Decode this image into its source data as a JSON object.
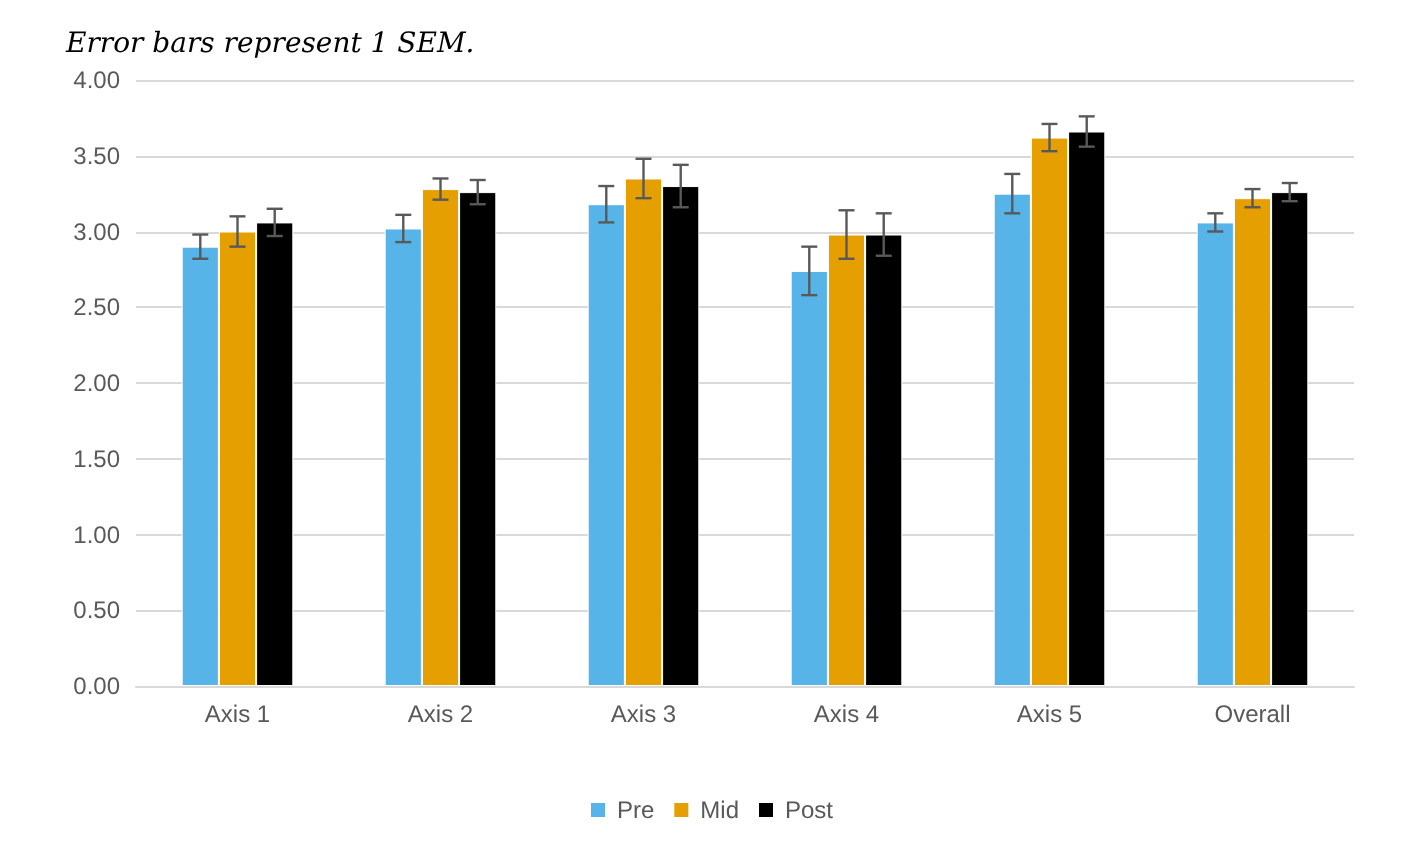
{
  "chart_data": {
    "type": "bar",
    "title": "Error bars represent 1 SEM.",
    "categories": [
      "Axis 1",
      "Axis 2",
      "Axis 3",
      "Axis 4",
      "Axis 5",
      "Overall"
    ],
    "series": [
      {
        "name": "Pre",
        "color": "#56b4e9",
        "values": [
          2.9,
          3.02,
          3.18,
          2.74,
          3.25,
          3.06
        ],
        "errors": [
          0.08,
          0.09,
          0.12,
          0.16,
          0.13,
          0.06
        ]
      },
      {
        "name": "Mid",
        "color": "#e69f00",
        "values": [
          3.0,
          3.28,
          3.35,
          2.98,
          3.62,
          3.22
        ],
        "errors": [
          0.1,
          0.07,
          0.13,
          0.16,
          0.09,
          0.06
        ]
      },
      {
        "name": "Post",
        "color": "#000000",
        "values": [
          3.06,
          3.26,
          3.3,
          2.98,
          3.66,
          3.26
        ],
        "errors": [
          0.09,
          0.08,
          0.14,
          0.14,
          0.1,
          0.06
        ]
      }
    ],
    "ylim": [
      0,
      4
    ],
    "yticks": [
      {
        "value": 0,
        "label": "0.00"
      },
      {
        "value": 0.5,
        "label": "0.50"
      },
      {
        "value": 1,
        "label": "1.00"
      },
      {
        "value": 1.5,
        "label": "1.50"
      },
      {
        "value": 2,
        "label": "2.00"
      },
      {
        "value": 2.5,
        "label": "2.50"
      },
      {
        "value": 3,
        "label": "3.00"
      },
      {
        "value": 3.5,
        "label": "3.50"
      },
      {
        "value": 4,
        "label": "4.00"
      }
    ],
    "grid": "y",
    "legend": "bottom"
  }
}
